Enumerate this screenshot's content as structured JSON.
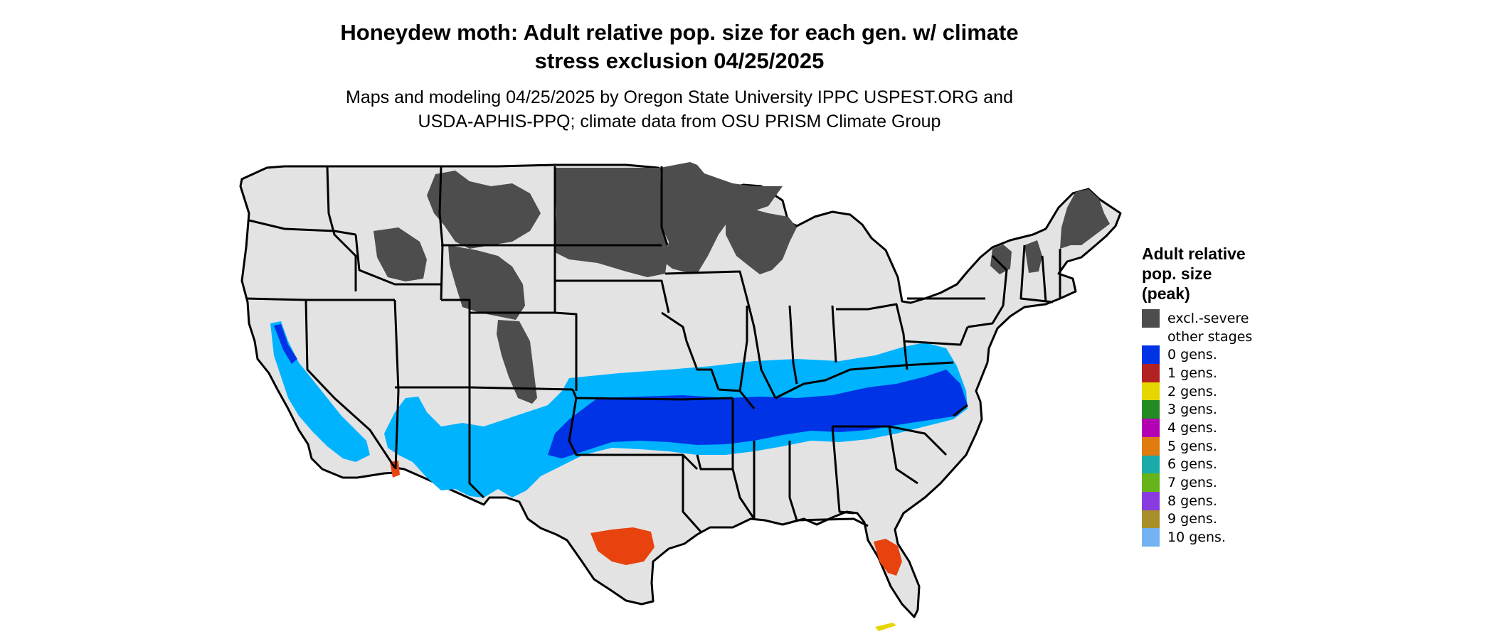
{
  "header": {
    "title_line1": "Honeydew moth: Adult relative pop. size for each gen. w/ climate",
    "title_line2": "stress exclusion 04/25/2025",
    "subtitle_line1": "Maps and modeling 04/25/2025 by Oregon State University IPPC USPEST.ORG and",
    "subtitle_line2": "USDA-APHIS-PPQ; climate data from OSU PRISM Climate Group"
  },
  "map": {
    "region": "Contiguous United States",
    "base_color": "#e3e3e3",
    "border_color": "#000000",
    "colors": {
      "excl_severe": "#4d4d4d",
      "zero_gens": "#0033e6",
      "zero_gens_light": "#00b3ff",
      "one_gen_mix": "#e8420f",
      "two_gens": "#e6d600"
    }
  },
  "legend": {
    "title_line1": "Adult relative",
    "title_line2": "pop. size",
    "title_line3": "(peak)",
    "items": [
      {
        "label": "excl.-severe",
        "color": "#4d4d4d"
      },
      {
        "label": "other stages",
        "color": "#ffffff"
      },
      {
        "label": "0 gens.",
        "color": "#0033e6"
      },
      {
        "label": "1 gens.",
        "color": "#b22222"
      },
      {
        "label": "2 gens.",
        "color": "#e6d600"
      },
      {
        "label": "3 gens.",
        "color": "#228b22"
      },
      {
        "label": "4 gens.",
        "color": "#b300b3"
      },
      {
        "label": "5 gens.",
        "color": "#e07b10"
      },
      {
        "label": "6 gens.",
        "color": "#1aaaaa"
      },
      {
        "label": "7 gens.",
        "color": "#66b31a"
      },
      {
        "label": "8 gens.",
        "color": "#8a3be0"
      },
      {
        "label": "9 gens.",
        "color": "#a88f2a"
      },
      {
        "label": "10 gens.",
        "color": "#73b3f2"
      }
    ]
  }
}
